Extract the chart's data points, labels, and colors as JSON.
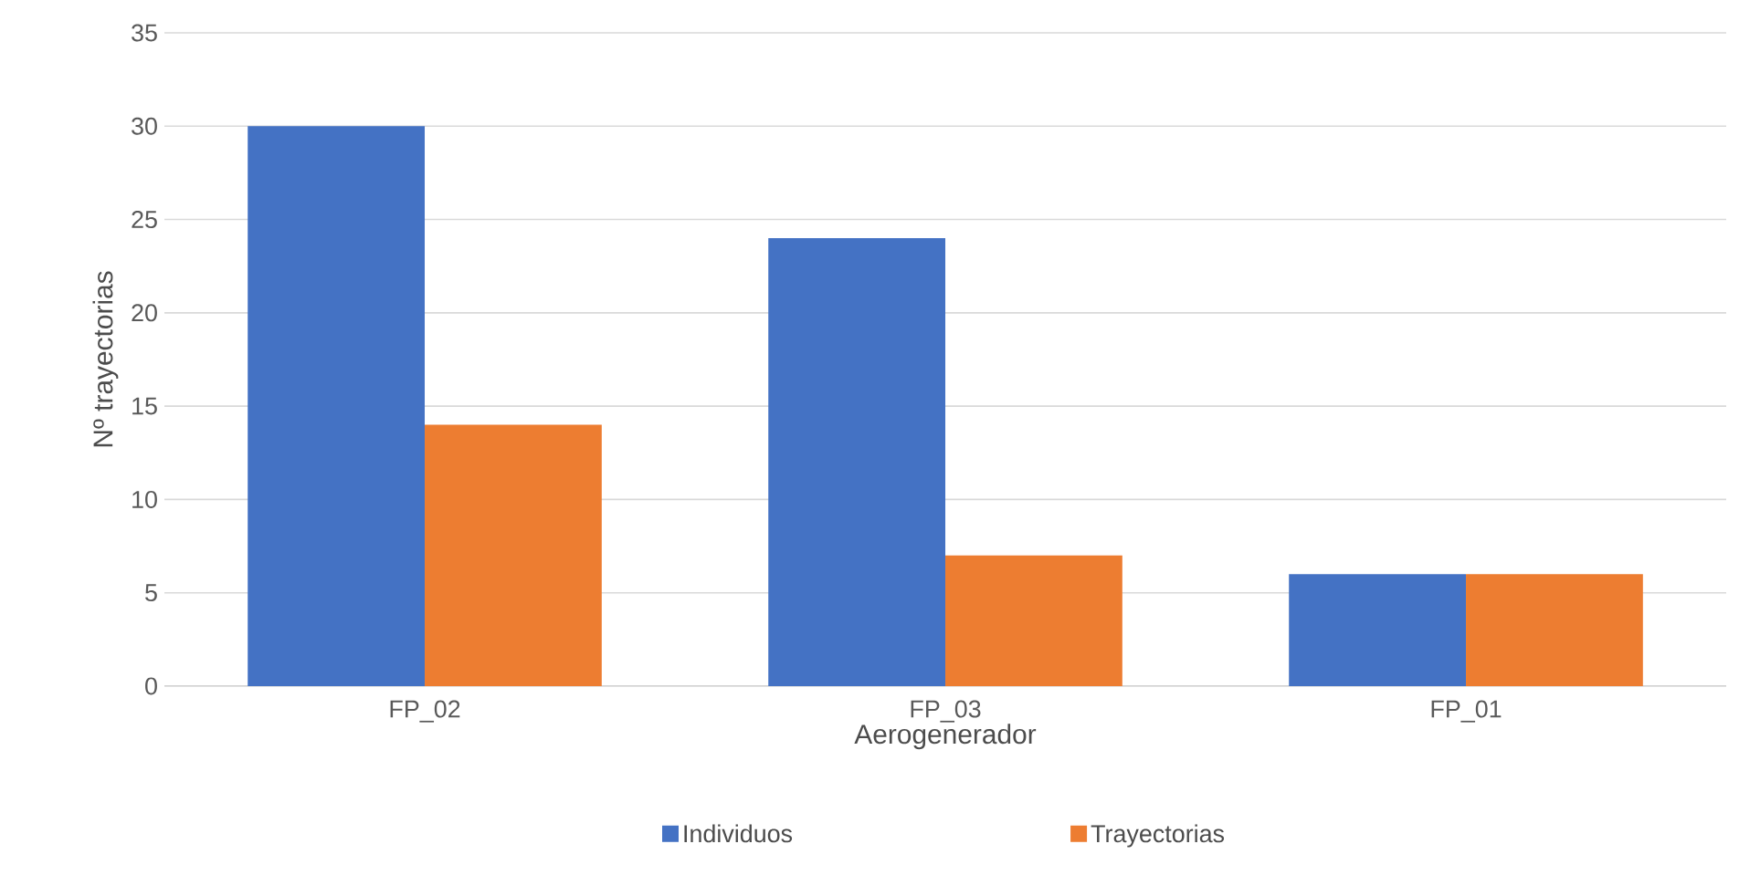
{
  "chart_data": {
    "type": "bar",
    "xlabel": "Aerogenerador",
    "ylabel": "Nº trayectorias",
    "categories": [
      "FP_02",
      "FP_03",
      "FP_01"
    ],
    "series": [
      {
        "name": "Individuos",
        "color": "#4472c4",
        "values": [
          30,
          24,
          6
        ]
      },
      {
        "name": "Trayectorias",
        "color": "#ed7d31",
        "values": [
          14,
          7,
          6
        ]
      }
    ],
    "ylim": [
      0,
      35
    ],
    "yticks": [
      0,
      5,
      10,
      15,
      20,
      25,
      30,
      35
    ],
    "grid": "y",
    "legend": "bottom"
  }
}
